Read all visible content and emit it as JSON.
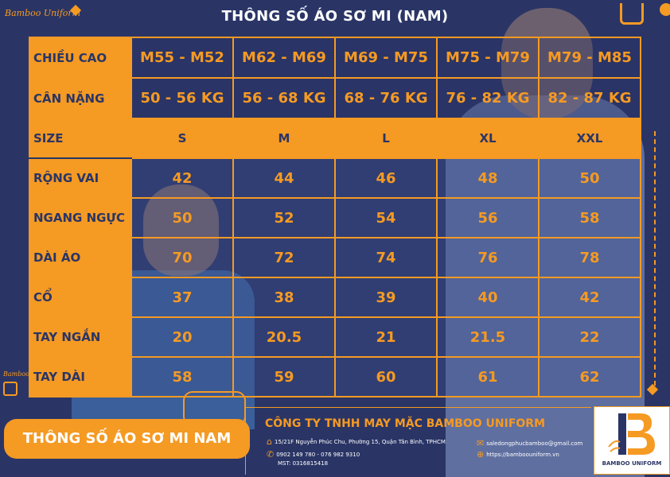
{
  "logo": "Bamboo Uniform",
  "title": "THÔNG SỐ ÁO SƠ MI (NAM)",
  "table": {
    "rows": [
      {
        "label": "CHIỀU CAO",
        "values": [
          "M55 - M52",
          "M62 - M69",
          "M69 - M75",
          "M75 - M79",
          "M79 - M85"
        ]
      },
      {
        "label": "CÂN NẶNG",
        "values": [
          "50 - 56 KG",
          "56 - 68 KG",
          "68 - 76 KG",
          "76 - 82 KG",
          "82 - 87 KG"
        ]
      },
      {
        "label": "SIZE",
        "values": [
          "S",
          "M",
          "L",
          "XL",
          "XXL"
        ]
      },
      {
        "label": "RỘNG VAI",
        "values": [
          "42",
          "44",
          "46",
          "48",
          "50"
        ]
      },
      {
        "label": "NGANG NGỰC",
        "values": [
          "50",
          "52",
          "54",
          "56",
          "58"
        ]
      },
      {
        "label": "DÀI ÁO",
        "values": [
          "70",
          "72",
          "74",
          "76",
          "78"
        ]
      },
      {
        "label": "CỔ",
        "values": [
          "37",
          "38",
          "39",
          "40",
          "42"
        ]
      },
      {
        "label": "TAY NGẮN",
        "values": [
          "20",
          "20.5",
          "21",
          "21.5",
          "22"
        ]
      },
      {
        "label": "TAY DÀI",
        "values": [
          "58",
          "59",
          "60",
          "61",
          "62"
        ]
      }
    ]
  },
  "banner": "THÔNG SỐ ÁO SƠ MI NAM",
  "company": {
    "name": "CÔNG TY TNHH MAY MẶC BAMBOO UNIFORM",
    "address": "15/21F Nguyễn Phúc Chu, Phường 15, Quận Tân Bình, TPHCM",
    "phone": "0902 149 780 - 076 982 9310",
    "tax": "MST: 0316815418",
    "email": "saledongphucbamboo@gmail.com",
    "website": "https://bamboouniform.vn"
  },
  "brand": "BAMBOO UNIFORM",
  "colors": {
    "background": "#2a3566",
    "accent": "#f59a23",
    "text": "#ffffff"
  }
}
